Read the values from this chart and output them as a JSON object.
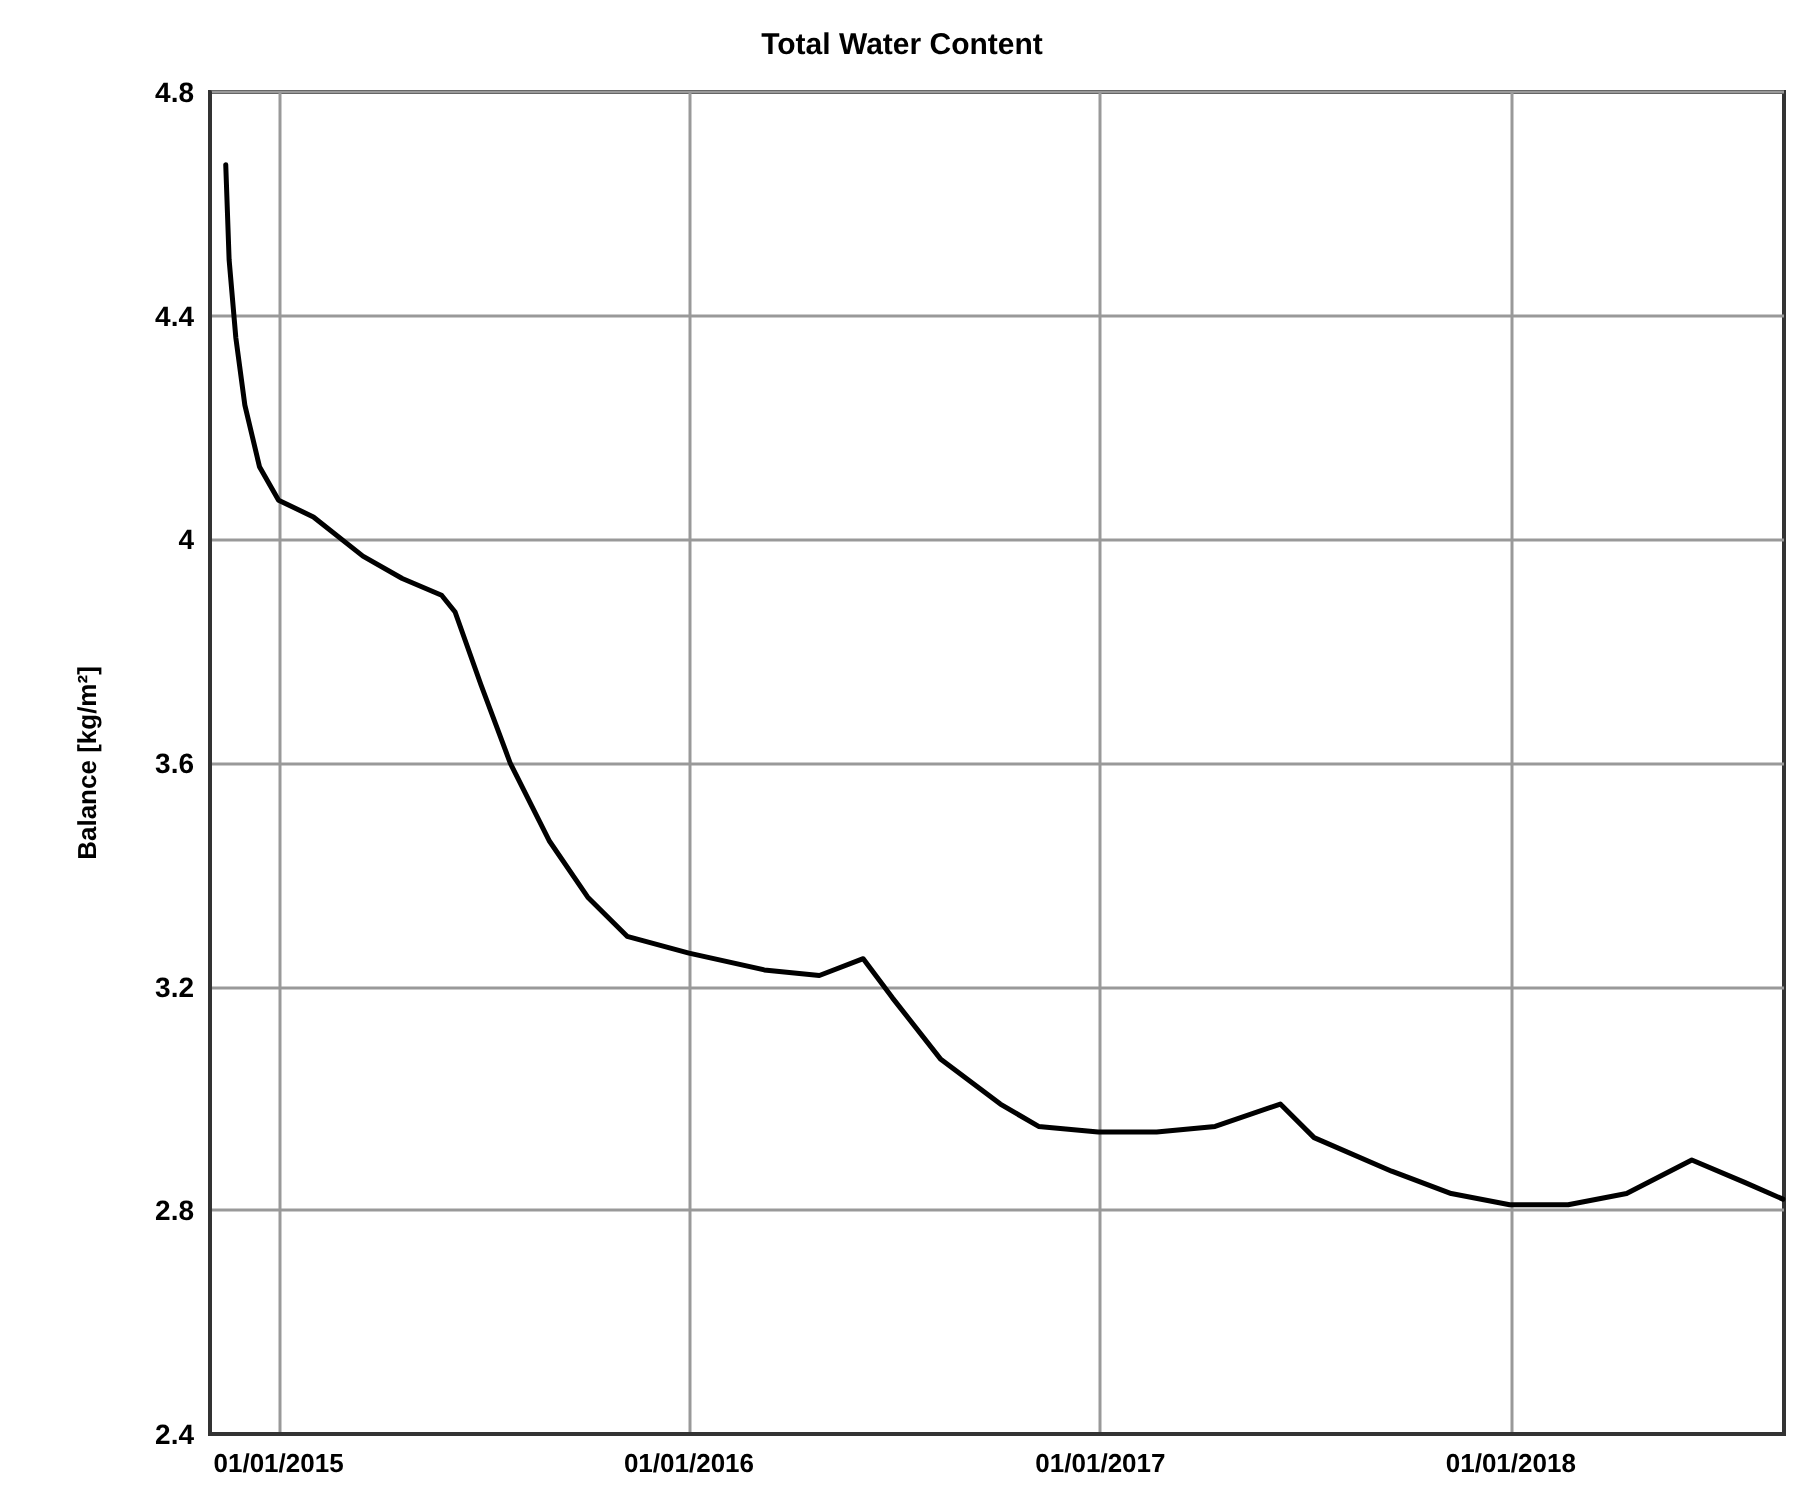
{
  "chart_data": {
    "type": "line",
    "title": "Total Water Content",
    "ylabel": "Balance [kg/m²]",
    "x": [
      "2014-11-15",
      "2014-11-18",
      "2014-11-24",
      "2014-12-02",
      "2014-12-15",
      "2015-01-01",
      "2015-02-01",
      "2015-03-17",
      "2015-04-21",
      "2015-05-26",
      "2015-06-07",
      "2015-06-30",
      "2015-07-26",
      "2015-08-30",
      "2015-10-03",
      "2015-11-07",
      "2016-01-01",
      "2016-03-08",
      "2016-04-26",
      "2016-06-04",
      "2016-06-30",
      "2016-08-12",
      "2016-10-04",
      "2016-11-07",
      "2016-12-30",
      "2017-02-20",
      "2017-04-13",
      "2017-06-10",
      "2017-07-10",
      "2017-09-17",
      "2017-11-09",
      "2017-12-31",
      "2018-02-21",
      "2018-04-14",
      "2018-06-11",
      "2018-07-28",
      "2018-08-31"
    ],
    "series": [
      {
        "color": "#000000",
        "values": [
          4.67,
          4.5,
          4.36,
          4.24,
          4.13,
          4.07,
          4.04,
          3.97,
          3.93,
          3.9,
          3.87,
          3.74,
          3.6,
          3.46,
          3.36,
          3.29,
          3.26,
          3.23,
          3.22,
          3.25,
          3.18,
          3.07,
          2.99,
          2.95,
          2.94,
          2.94,
          2.95,
          2.99,
          2.93,
          2.87,
          2.83,
          2.81,
          2.81,
          2.83,
          2.89,
          2.85,
          2.82
        ]
      }
    ],
    "xlim": [
      "2014-11-01",
      "2018-09-01"
    ],
    "xticks": [
      {
        "value": "2015-01-01",
        "label": "01/01/2015"
      },
      {
        "value": "2016-01-01",
        "label": "01/01/2016"
      },
      {
        "value": "2017-01-01",
        "label": "01/01/2017"
      },
      {
        "value": "2018-01-01",
        "label": "01/01/2018"
      }
    ],
    "ylim": [
      2.4,
      4.8
    ],
    "yticks": [
      2.4,
      2.8,
      3.2,
      3.6,
      4,
      4.4,
      4.8
    ],
    "grid": true,
    "marker": "none",
    "line_style": "solid"
  }
}
